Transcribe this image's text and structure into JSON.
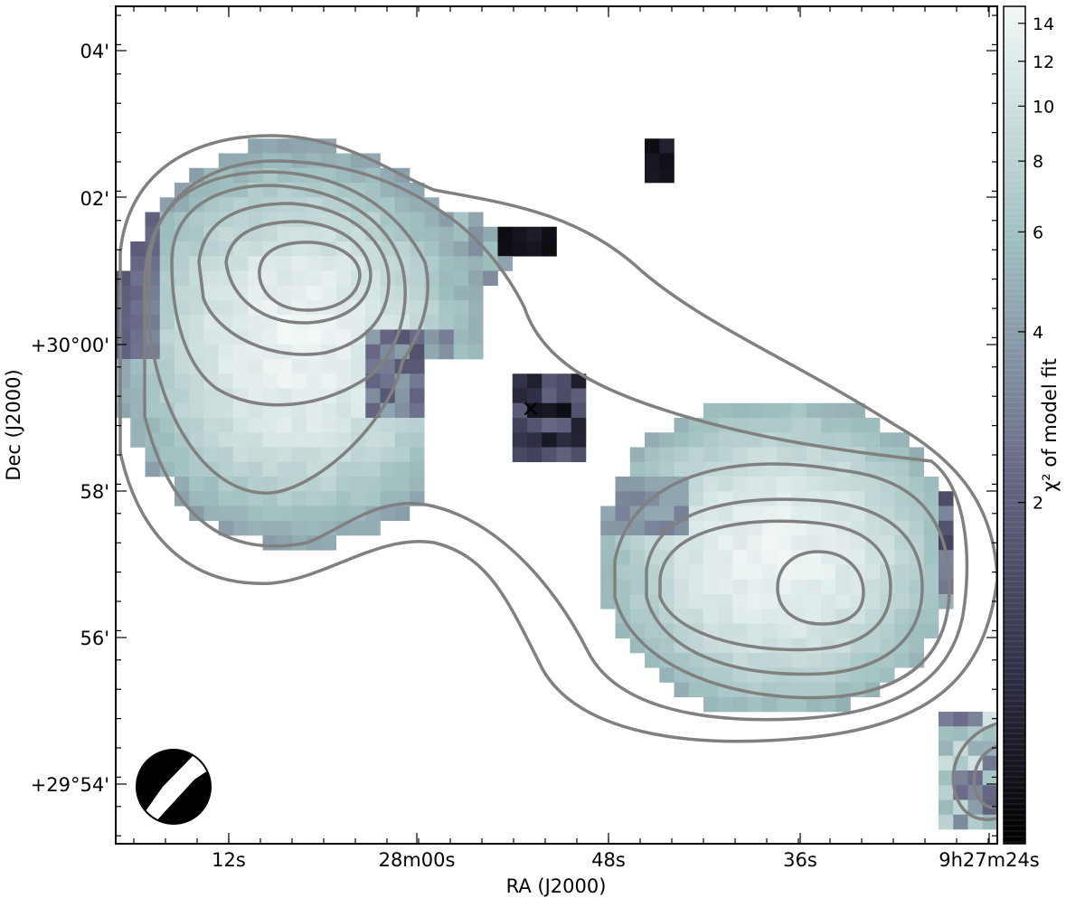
{
  "chart_data": {
    "type": "heatmap",
    "title": "",
    "xlabel": "RA (J2000)",
    "ylabel": "Dec (J2000)",
    "x_ticks": [
      "12s",
      "28m00s",
      "48s",
      "36s",
      "9h27m24s"
    ],
    "y_ticks": [
      "04'",
      "02'",
      "+30°00'",
      "58'",
      "56'",
      "+29°54'"
    ],
    "colorbar": {
      "label": "χ² of model fit",
      "scale": "log",
      "range": [
        0.5,
        15
      ],
      "ticks": [
        "14",
        "12",
        "10",
        "8",
        "6",
        "4",
        "2"
      ],
      "tick_values": [
        14,
        12,
        10,
        8,
        6,
        4,
        2
      ],
      "colormap": [
        "#000000",
        "#5a5a78",
        "#9fbfbf",
        "#f0f6f6"
      ]
    },
    "source_marker": "×",
    "contour_color": "#808080",
    "grid": false,
    "beam_position": "bottom-left"
  }
}
